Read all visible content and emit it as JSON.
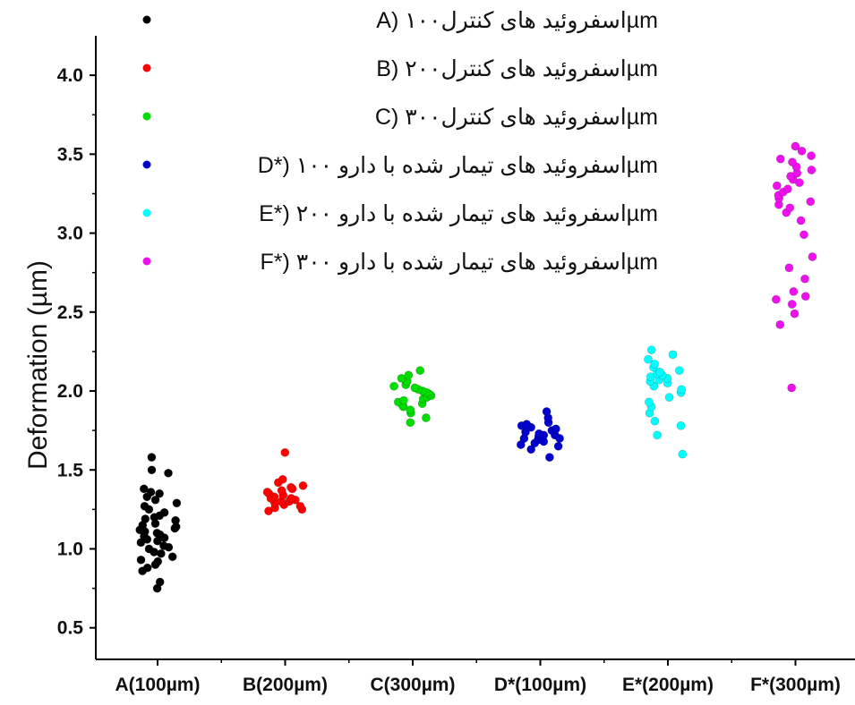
{
  "chart_data": {
    "type": "scatter",
    "title": "",
    "xlabel": "",
    "ylabel": "Deformation (µm)",
    "ylim": [
      0.3,
      4.25
    ],
    "yticks": [
      0.5,
      1.0,
      1.5,
      2.0,
      2.5,
      3.0,
      3.5,
      4.0
    ],
    "ytick_labels": [
      "0.5",
      "1.0",
      "1.5",
      "2.0",
      "2.5",
      "3.0",
      "3.5",
      "4.0"
    ],
    "grid": false,
    "legend_position": "top",
    "categories": [
      "A(100µm)",
      "B(200µm)",
      "C(300µm)",
      "D*(100µm)",
      "E*(200µm)",
      "F*(300µm)"
    ],
    "series": [
      {
        "name": "A) اسفروئید های کنترل۱۰۰µm",
        "color": "#000000",
        "values": [
          0.75,
          0.79,
          0.86,
          0.88,
          0.9,
          0.92,
          0.93,
          0.95,
          0.97,
          0.98,
          1.0,
          1.01,
          1.02,
          1.04,
          1.05,
          1.06,
          1.07,
          1.08,
          1.09,
          1.1,
          1.11,
          1.12,
          1.13,
          1.14,
          1.15,
          1.16,
          1.18,
          1.19,
          1.2,
          1.21,
          1.23,
          1.25,
          1.27,
          1.29,
          1.31,
          1.33,
          1.35,
          1.36,
          1.38,
          1.48,
          1.5,
          1.58
        ]
      },
      {
        "name": "B) اسفروئید های کنترل۲۰۰µm",
        "color": "#ff0000",
        "values": [
          1.24,
          1.25,
          1.26,
          1.27,
          1.28,
          1.29,
          1.3,
          1.3,
          1.31,
          1.32,
          1.32,
          1.33,
          1.34,
          1.35,
          1.36,
          1.37,
          1.38,
          1.39,
          1.4,
          1.42,
          1.44,
          1.61
        ]
      },
      {
        "name": "C) اسفروئید های کنترل۳۰۰µm",
        "color": "#00dd00",
        "values": [
          1.8,
          1.83,
          1.86,
          1.88,
          1.9,
          1.91,
          1.92,
          1.93,
          1.94,
          1.95,
          1.96,
          1.97,
          1.98,
          1.99,
          2.0,
          2.01,
          2.02,
          2.03,
          2.04,
          2.06,
          2.08,
          2.1,
          2.13
        ]
      },
      {
        "name": "D*) اسفروئید های تیمار شده با دارو ۱۰۰µm",
        "color": "#0000cc",
        "values": [
          1.58,
          1.63,
          1.65,
          1.66,
          1.67,
          1.68,
          1.69,
          1.7,
          1.7,
          1.71,
          1.72,
          1.72,
          1.73,
          1.74,
          1.75,
          1.76,
          1.77,
          1.78,
          1.79,
          1.8,
          1.83,
          1.87
        ]
      },
      {
        "name": "E*) اسفروئید های تیمار شده با دارو ۲۰۰µm",
        "color": "#00ffff",
        "values": [
          1.6,
          1.72,
          1.78,
          1.81,
          1.86,
          1.9,
          1.93,
          1.96,
          1.99,
          2.01,
          2.03,
          2.05,
          2.06,
          2.07,
          2.08,
          2.09,
          2.1,
          2.11,
          2.12,
          2.13,
          2.15,
          2.17,
          2.2,
          2.23,
          2.26
        ]
      },
      {
        "name": "F*) اسفروئید های تیمار شده با دارو ۳۰۰µm",
        "color": "#ee11ee",
        "values": [
          2.02,
          2.42,
          2.49,
          2.55,
          2.58,
          2.6,
          2.63,
          2.71,
          2.78,
          2.85,
          2.99,
          3.08,
          3.13,
          3.16,
          3.18,
          3.2,
          3.22,
          3.24,
          3.26,
          3.28,
          3.3,
          3.32,
          3.34,
          3.36,
          3.38,
          3.4,
          3.42,
          3.45,
          3.47,
          3.49,
          3.52,
          3.55
        ]
      }
    ]
  }
}
